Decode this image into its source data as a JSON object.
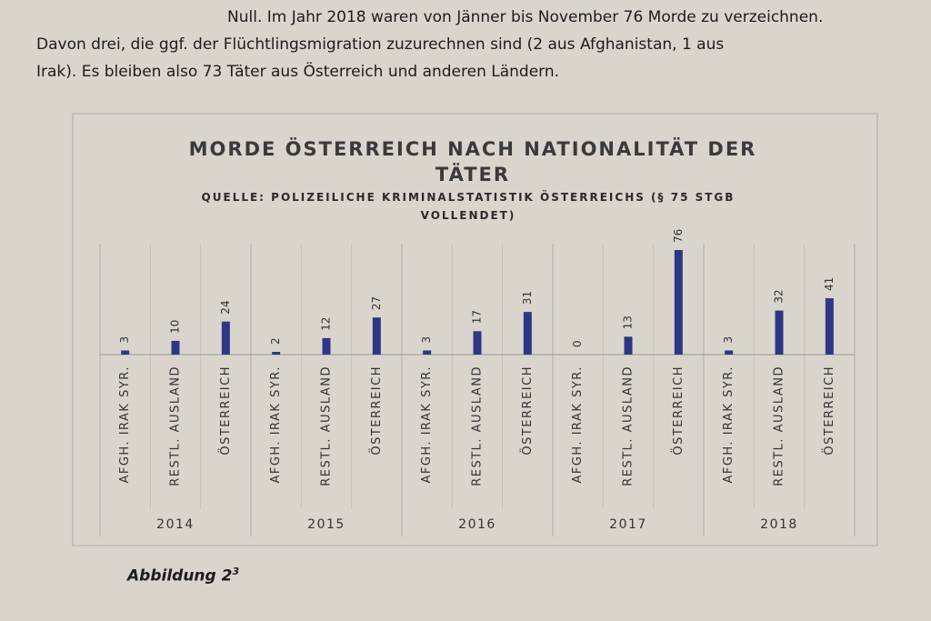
{
  "intro_lines": [
    "Null. Im Jahr 2018 waren von Jänner bis November 76 Morde zu verzeichnen.",
    "Davon drei, die ggf. der Flüchtlingsmigration zuzurechnen sind (2 aus Afghanistan, 1 aus",
    "Irak). Es bleiben also 73 Täter aus Österreich und anderen Ländern."
  ],
  "chart_data": {
    "type": "bar",
    "title": "MORDE ÖSTERREICH NACH NATIONALITÄT DER TÄTER",
    "subtitle": "QUELLE: POLIZEILICHE KRIMINALSTATISTIK ÖSTERREICHS (§ 75 STGB VOLLENDET)",
    "categories": [
      "AFGH. IRAK SYR.",
      "RESTL. AUSLAND",
      "ÖSTERREICH",
      "AFGH. IRAK SYR.",
      "RESTL. AUSLAND",
      "ÖSTERREICH",
      "AFGH. IRAK SYR.",
      "RESTL. AUSLAND",
      "ÖSTERREICH",
      "AFGH. IRAK SYR.",
      "RESTL. AUSLAND",
      "ÖSTERREICH",
      "AFGH. IRAK SYR.",
      "RESTL. AUSLAND",
      "ÖSTERREICH"
    ],
    "groups": [
      "2014",
      "2015",
      "2016",
      "2017",
      "2018"
    ],
    "values": [
      3,
      10,
      24,
      2,
      12,
      27,
      3,
      17,
      31,
      0,
      13,
      76,
      3,
      32,
      41
    ],
    "color": "#2e3785"
  },
  "caption": {
    "text": "Abbildung 2",
    "footnote": "3"
  }
}
